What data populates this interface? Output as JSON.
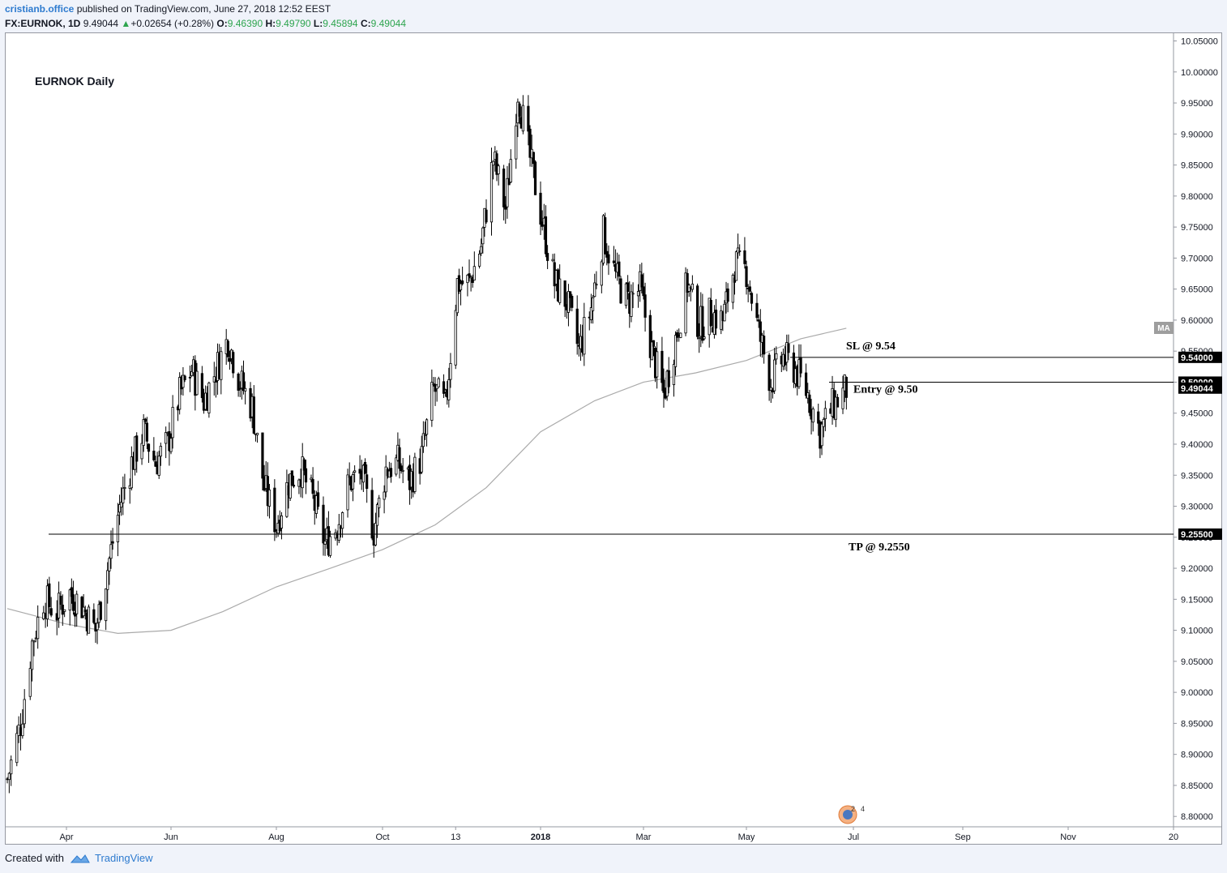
{
  "header": {
    "author": "cristianb.office",
    "published": "published on TradingView.com, June 27, 2018 12:52 EEST"
  },
  "quote": {
    "symbol": "FX:EURNOK, 1D",
    "last": "9.49044",
    "change": "+0.02654 (+0.28%)",
    "o_label": "O:",
    "o": "9.46390",
    "h_label": "H:",
    "h": "9.49790",
    "l_label": "L:",
    "l": "9.45894",
    "c_label": "C:",
    "c": "9.49044",
    "up_color": "#2da44e"
  },
  "footer": {
    "created_with": "Created with",
    "brand": "TradingView"
  },
  "chart_data": {
    "type": "candlestick",
    "title": "EURNOK Daily",
    "x_ticks": [
      "Apr",
      "Jun",
      "Aug",
      "Oct",
      "13",
      "2018",
      "Mar",
      "May",
      "Jul",
      "Sep",
      "Nov",
      "20"
    ],
    "ylim": [
      8.775,
      10.065
    ],
    "y_ticks": [
      "10.05000",
      "10.00000",
      "9.95000",
      "9.90000",
      "9.85000",
      "9.80000",
      "9.75000",
      "9.70000",
      "9.65000",
      "9.60000",
      "9.55000",
      "9.50000",
      "9.45000",
      "9.40000",
      "9.35000",
      "9.30000",
      "9.25000",
      "9.20000",
      "9.15000",
      "9.10000",
      "9.05000",
      "9.00000",
      "8.95000",
      "8.90000",
      "8.85000",
      "8.80000"
    ],
    "close_path": [
      [
        "2017-03-01",
        8.86
      ],
      [
        "2017-03-08",
        8.95
      ],
      [
        "2017-03-14",
        9.08
      ],
      [
        "2017-03-20",
        9.15
      ],
      [
        "2017-03-27",
        9.13
      ],
      [
        "2017-04-03",
        9.16
      ],
      [
        "2017-04-10",
        9.14
      ],
      [
        "2017-04-18",
        9.1
      ],
      [
        "2017-04-25",
        9.2
      ],
      [
        "2017-05-02",
        9.3
      ],
      [
        "2017-05-09",
        9.37
      ],
      [
        "2017-05-16",
        9.42
      ],
      [
        "2017-05-23",
        9.37
      ],
      [
        "2017-05-30",
        9.4
      ],
      [
        "2017-06-06",
        9.48
      ],
      [
        "2017-06-13",
        9.52
      ],
      [
        "2017-06-20",
        9.47
      ],
      [
        "2017-06-27",
        9.52
      ],
      [
        "2017-07-04",
        9.57
      ],
      [
        "2017-07-11",
        9.5
      ],
      [
        "2017-07-18",
        9.46
      ],
      [
        "2017-07-25",
        9.33
      ],
      [
        "2017-08-01",
        9.27
      ],
      [
        "2017-08-08",
        9.34
      ],
      [
        "2017-08-15",
        9.36
      ],
      [
        "2017-08-22",
        9.31
      ],
      [
        "2017-08-29",
        9.24
      ],
      [
        "2017-09-05",
        9.27
      ],
      [
        "2017-09-12",
        9.34
      ],
      [
        "2017-09-19",
        9.35
      ],
      [
        "2017-09-26",
        9.26
      ],
      [
        "2017-10-03",
        9.36
      ],
      [
        "2017-10-10",
        9.37
      ],
      [
        "2017-10-17",
        9.34
      ],
      [
        "2017-10-24",
        9.38
      ],
      [
        "2017-10-31",
        9.49
      ],
      [
        "2017-11-07",
        9.46
      ],
      [
        "2017-11-14",
        9.66
      ],
      [
        "2017-11-21",
        9.66
      ],
      [
        "2017-11-28",
        9.72
      ],
      [
        "2017-12-05",
        9.86
      ],
      [
        "2017-12-12",
        9.78
      ],
      [
        "2017-12-19",
        9.97
      ],
      [
        "2017-12-26",
        9.86
      ],
      [
        "2018-01-02",
        9.76
      ],
      [
        "2018-01-09",
        9.66
      ],
      [
        "2018-01-16",
        9.63
      ],
      [
        "2018-01-23",
        9.55
      ],
      [
        "2018-01-30",
        9.62
      ],
      [
        "2018-02-06",
        9.74
      ],
      [
        "2018-02-13",
        9.67
      ],
      [
        "2018-02-20",
        9.63
      ],
      [
        "2018-02-27",
        9.65
      ],
      [
        "2018-03-06",
        9.55
      ],
      [
        "2018-03-13",
        9.48
      ],
      [
        "2018-03-20",
        9.57
      ],
      [
        "2018-03-27",
        9.66
      ],
      [
        "2018-04-03",
        9.59
      ],
      [
        "2018-04-10",
        9.61
      ],
      [
        "2018-04-17",
        9.6
      ],
      [
        "2018-04-24",
        9.69
      ],
      [
        "2018-05-01",
        9.68
      ],
      [
        "2018-05-08",
        9.58
      ],
      [
        "2018-05-15",
        9.5
      ],
      [
        "2018-05-22",
        9.54
      ],
      [
        "2018-05-29",
        9.52
      ],
      [
        "2018-06-05",
        9.48
      ],
      [
        "2018-06-12",
        9.42
      ],
      [
        "2018-06-19",
        9.46
      ],
      [
        "2018-06-27",
        9.49
      ]
    ],
    "ma_path": [
      [
        "2017-03-01",
        9.135
      ],
      [
        "2017-04-01",
        9.11
      ],
      [
        "2017-05-01",
        9.095
      ],
      [
        "2017-06-01",
        9.1
      ],
      [
        "2017-07-01",
        9.13
      ],
      [
        "2017-08-01",
        9.17
      ],
      [
        "2017-09-01",
        9.2
      ],
      [
        "2017-10-01",
        9.23
      ],
      [
        "2017-11-01",
        9.27
      ],
      [
        "2017-12-01",
        9.33
      ],
      [
        "2018-01-01",
        9.42
      ],
      [
        "2018-02-01",
        9.47
      ],
      [
        "2018-03-01",
        9.5
      ],
      [
        "2018-04-01",
        9.515
      ],
      [
        "2018-05-01",
        9.535
      ],
      [
        "2018-06-01",
        9.57
      ],
      [
        "2018-06-27",
        9.587
      ]
    ],
    "ma_label": "MA",
    "ma_color": "#aaaaaa",
    "levels": [
      {
        "name": "sl",
        "value": 9.54,
        "price_label": "9.54000",
        "text": "SL @ 9.54"
      },
      {
        "name": "entry",
        "value": 9.5,
        "price_label": "9.50000",
        "text": "Entry @ 9.50"
      },
      {
        "name": "tp",
        "value": 9.255,
        "price_label": "9.25500",
        "text": "TP @ 9.2550"
      }
    ],
    "last_price_label": "9.49044",
    "events_badge": {
      "count_a": "2",
      "count_b": "4"
    },
    "grid": false,
    "legend": "none"
  }
}
